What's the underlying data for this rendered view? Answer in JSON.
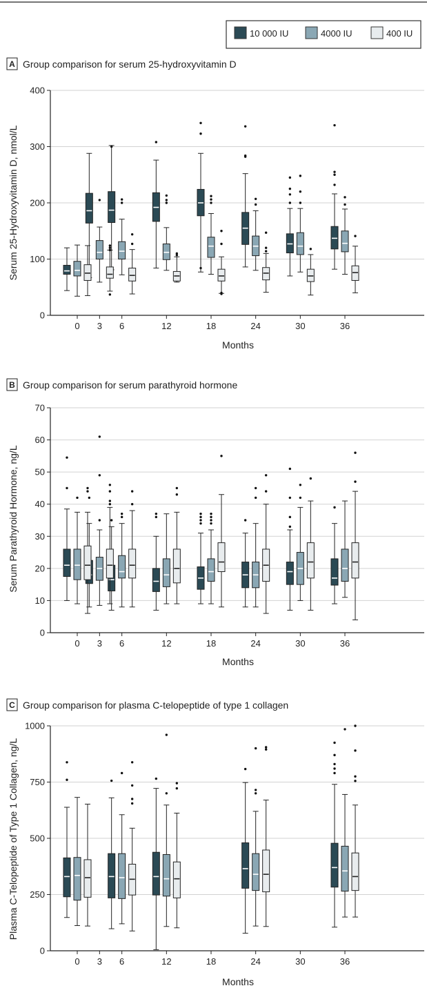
{
  "legend": {
    "entries": [
      {
        "label": "10 000 IU",
        "color": "#2b4a55"
      },
      {
        "label": "4000 IU",
        "color": "#8aa7b4"
      },
      {
        "label": "400 IU",
        "color": "#e8ecee"
      }
    ]
  },
  "chart_data": [
    {
      "type": "box",
      "panel_letter": "A",
      "title": "Group comparison for serum 25-hydroxyvitamin D",
      "xlabel": "Months",
      "ylabel": "Serum 25-Hydroxyvitamin D, nmol/L",
      "ylim": [
        0,
        400
      ],
      "yticks": [
        0,
        100,
        200,
        300,
        400
      ],
      "grid": true,
      "categories": [
        "0",
        "3",
        "6",
        "12",
        "18",
        "24",
        "30",
        "36"
      ],
      "series": [
        {
          "name": "10 000 IU",
          "boxes": [
            {
              "month": "0",
              "min": 44,
              "q1": 73,
              "median": 79,
              "q3": 89,
              "max": 120,
              "outliers": []
            },
            {
              "month": "3",
              "min": 67,
              "q1": 164,
              "median": 186,
              "q3": 217,
              "max": 288,
              "outliers": []
            },
            {
              "month": "6",
              "min": 81,
              "q1": 165,
              "median": 187,
              "q3": 220,
              "max": 302,
              "outliers": [
                300
              ]
            },
            {
              "month": "12",
              "min": 84,
              "q1": 167,
              "median": 192,
              "q3": 218,
              "max": 276,
              "outliers": [
                308
              ]
            },
            {
              "month": "18",
              "min": 77,
              "q1": 177,
              "median": 200,
              "q3": 224,
              "max": 288,
              "outliers": [
                84,
                323,
                342
              ]
            },
            {
              "month": "24",
              "min": 86,
              "q1": 126,
              "median": 155,
              "q3": 183,
              "max": 252,
              "outliers": [
                282,
                284,
                336
              ]
            },
            {
              "month": "30",
              "min": 70,
              "q1": 111,
              "median": 127,
              "q3": 145,
              "max": 190,
              "outliers": [
                200,
                215,
                225,
                245
              ]
            },
            {
              "month": "36",
              "min": 82,
              "q1": 118,
              "median": 137,
              "q3": 158,
              "max": 216,
              "outliers": [
                232,
                250,
                255,
                338
              ]
            }
          ]
        },
        {
          "name": "4000 IU",
          "boxes": [
            {
              "month": "0",
              "min": 34,
              "q1": 70,
              "median": 80,
              "q3": 96,
              "max": 125,
              "outliers": []
            },
            {
              "month": "3",
              "min": 59,
              "q1": 100,
              "median": 112,
              "q3": 133,
              "max": 157,
              "outliers": [
                205
              ]
            },
            {
              "month": "6",
              "min": 72,
              "q1": 100,
              "median": 114,
              "q3": 131,
              "max": 171,
              "outliers": [
                200,
                206
              ]
            },
            {
              "month": "12",
              "min": 80,
              "q1": 99,
              "median": 112,
              "q3": 127,
              "max": 156,
              "outliers": [
                200,
                205,
                213
              ]
            },
            {
              "month": "18",
              "min": 73,
              "q1": 103,
              "median": 123,
              "q3": 139,
              "max": 181,
              "outliers": [
                200,
                206,
                212
              ]
            },
            {
              "month": "24",
              "min": 80,
              "q1": 106,
              "median": 123,
              "q3": 141,
              "max": 186,
              "outliers": [
                197,
                207
              ]
            },
            {
              "month": "30",
              "min": 77,
              "q1": 108,
              "median": 123,
              "q3": 147,
              "max": 190,
              "outliers": [
                200,
                220,
                248
              ]
            },
            {
              "month": "36",
              "min": 73,
              "q1": 113,
              "median": 128,
              "q3": 150,
              "max": 189,
              "outliers": [
                197,
                210
              ]
            }
          ]
        },
        {
          "name": "400 IU",
          "boxes": [
            {
              "month": "0",
              "min": 35,
              "q1": 62,
              "median": 75,
              "q3": 90,
              "max": 124,
              "outliers": []
            },
            {
              "month": "3",
              "min": 43,
              "q1": 66,
              "median": 73,
              "q3": 86,
              "max": 116,
              "outliers": [
                37,
                116,
                120,
                124
              ]
            },
            {
              "month": "6",
              "min": 38,
              "q1": 61,
              "median": 71,
              "q3": 84,
              "max": 117,
              "outliers": [
                127,
                144
              ]
            },
            {
              "month": "12",
              "min": 59,
              "q1": 61,
              "median": 70,
              "q3": 78,
              "max": 104,
              "outliers": [
                107,
                110
              ]
            },
            {
              "month": "18",
              "min": 39,
              "q1": 61,
              "median": 70,
              "q3": 82,
              "max": 104,
              "outliers": [
                38,
                40,
                127,
                150
              ]
            },
            {
              "month": "24",
              "min": 41,
              "q1": 63,
              "median": 75,
              "q3": 85,
              "max": 110,
              "outliers": [
                114,
                120,
                147
              ]
            },
            {
              "month": "30",
              "min": 36,
              "q1": 60,
              "median": 70,
              "q3": 82,
              "max": 108,
              "outliers": [
                118
              ]
            },
            {
              "month": "36",
              "min": 40,
              "q1": 62,
              "median": 76,
              "q3": 88,
              "max": 123,
              "outliers": [
                141
              ]
            }
          ]
        }
      ]
    },
    {
      "type": "box",
      "panel_letter": "B",
      "title": "Group comparison for serum parathyroid hormone",
      "xlabel": "Months",
      "ylabel": "Serum Parathyroid Hormone, ng/L",
      "ylim": [
        0,
        70
      ],
      "yticks": [
        0,
        10,
        20,
        30,
        40,
        50,
        60,
        70
      ],
      "grid": true,
      "categories": [
        "0",
        "3",
        "6",
        "12",
        "18",
        "24",
        "30",
        "36"
      ],
      "series": [
        {
          "name": "10 000 IU",
          "boxes": [
            {
              "month": "0",
              "min": 10,
              "q1": 17.5,
              "median": 21,
              "q3": 26,
              "max": 38.5,
              "outliers": [
                45,
                54.5
              ]
            },
            {
              "month": "3",
              "min": 8,
              "q1": 15.3,
              "median": 18,
              "q3": 22.5,
              "max": 34,
              "outliers": [
                42
              ]
            },
            {
              "month": "6",
              "min": 7,
              "q1": 13,
              "median": 16.5,
              "q3": 21,
              "max": 33,
              "outliers": [
                35
              ]
            },
            {
              "month": "12",
              "min": 7,
              "q1": 12.8,
              "median": 16,
              "q3": 20,
              "max": 30,
              "outliers": [
                36,
                37
              ]
            },
            {
              "month": "18",
              "min": 9,
              "q1": 13.5,
              "median": 17,
              "q3": 20.5,
              "max": 31,
              "outliers": [
                34,
                35,
                36,
                37
              ]
            },
            {
              "month": "24",
              "min": 8,
              "q1": 14,
              "median": 18,
              "q3": 22,
              "max": 31,
              "outliers": [
                35
              ]
            },
            {
              "month": "30",
              "min": 7,
              "q1": 15,
              "median": 19,
              "q3": 22,
              "max": 32,
              "outliers": [
                33,
                36,
                42,
                51
              ]
            },
            {
              "month": "36",
              "min": 9,
              "q1": 14.8,
              "median": 17,
              "q3": 23,
              "max": 34,
              "outliers": [
                39
              ]
            }
          ]
        },
        {
          "name": "4000 IU",
          "boxes": [
            {
              "month": "0",
              "min": 9,
              "q1": 16.5,
              "median": 21,
              "q3": 26,
              "max": 37.5,
              "outliers": [
                42
              ]
            },
            {
              "month": "3",
              "min": 8.5,
              "q1": 16.3,
              "median": 20,
              "q3": 23.5,
              "max": 32,
              "outliers": [
                35,
                49,
                61
              ]
            },
            {
              "month": "6",
              "min": 8,
              "q1": 17,
              "median": 19,
              "q3": 24,
              "max": 34,
              "outliers": [
                36,
                37
              ]
            },
            {
              "month": "12",
              "min": 9,
              "q1": 14.3,
              "median": 18,
              "q3": 23,
              "max": 37,
              "outliers": []
            },
            {
              "month": "18",
              "min": 9,
              "q1": 16,
              "median": 19,
              "q3": 23,
              "max": 32,
              "outliers": [
                34,
                35,
                36,
                37
              ]
            },
            {
              "month": "24",
              "min": 8,
              "q1": 14,
              "median": 18,
              "q3": 22,
              "max": 34,
              "outliers": [
                42,
                45
              ]
            },
            {
              "month": "30",
              "min": 10,
              "q1": 15,
              "median": 20,
              "q3": 25,
              "max": 39,
              "outliers": [
                42,
                46
              ]
            },
            {
              "month": "36",
              "min": 11,
              "q1": 16,
              "median": 20,
              "q3": 26,
              "max": 41,
              "outliers": []
            }
          ]
        },
        {
          "name": "400 IU",
          "boxes": [
            {
              "month": "0",
              "min": 6,
              "q1": 16.5,
              "median": 21,
              "q3": 27,
              "max": 37.5,
              "outliers": [
                44,
                45
              ]
            },
            {
              "month": "3",
              "min": 9,
              "q1": 17,
              "median": 21,
              "q3": 26,
              "max": 39,
              "outliers": [
                40,
                41,
                44,
                46
              ]
            },
            {
              "month": "6",
              "min": 8,
              "q1": 17,
              "median": 21,
              "q3": 26,
              "max": 38,
              "outliers": [
                40,
                44
              ]
            },
            {
              "month": "12",
              "min": 9,
              "q1": 15.5,
              "median": 20,
              "q3": 26,
              "max": 37.5,
              "outliers": [
                43,
                45
              ]
            },
            {
              "month": "18",
              "min": 8,
              "q1": 19,
              "median": 22,
              "q3": 28,
              "max": 43,
              "outliers": [
                55
              ]
            },
            {
              "month": "24",
              "min": 6,
              "q1": 16,
              "median": 21,
              "q3": 26,
              "max": 40,
              "outliers": [
                44,
                49
              ]
            },
            {
              "month": "30",
              "min": 7,
              "q1": 17,
              "median": 22,
              "q3": 28,
              "max": 41,
              "outliers": [
                48
              ]
            },
            {
              "month": "36",
              "min": 4,
              "q1": 17,
              "median": 22,
              "q3": 28,
              "max": 44,
              "outliers": [
                47,
                56
              ]
            }
          ]
        }
      ]
    },
    {
      "type": "box",
      "panel_letter": "C",
      "title": "Group comparison for plasma C-telopeptide of type 1 collagen",
      "xlabel": "Months",
      "ylabel": "Plasma C-Telopeptide of Type 1 Collagen, ng/L",
      "ylim": [
        0,
        1000
      ],
      "yticks": [
        0,
        250,
        500,
        750,
        1000
      ],
      "grid": true,
      "categories": [
        "0",
        "3",
        "6",
        "12",
        "18",
        "24",
        "30",
        "36"
      ],
      "series": [
        {
          "name": "10 000 IU",
          "boxes": [
            {
              "month": "0",
              "min": 148,
              "q1": 240,
              "median": 330,
              "q3": 413,
              "max": 638,
              "outliers": [
                760,
                838
              ]
            },
            {
              "month": "6",
              "min": 98,
              "q1": 235,
              "median": 330,
              "q3": 432,
              "max": 680,
              "outliers": [
                756
              ]
            },
            {
              "month": "12",
              "min": 5,
              "q1": 248,
              "median": 330,
              "q3": 438,
              "max": 722,
              "outliers": [
                765
              ]
            },
            {
              "month": "24",
              "min": 78,
              "q1": 278,
              "median": 365,
              "q3": 480,
              "max": 748,
              "outliers": [
                808
              ]
            },
            {
              "month": "36",
              "min": 105,
              "q1": 283,
              "median": 370,
              "q3": 478,
              "max": 740,
              "outliers": [
                790,
                810,
                830,
                870,
                925
              ]
            }
          ]
        },
        {
          "name": "4000 IU",
          "boxes": [
            {
              "month": "0",
              "min": 112,
              "q1": 225,
              "median": 335,
              "q3": 415,
              "max": 682,
              "outliers": []
            },
            {
              "month": "6",
              "min": 120,
              "q1": 232,
              "median": 325,
              "q3": 432,
              "max": 605,
              "outliers": [
                790
              ]
            },
            {
              "month": "12",
              "min": 108,
              "q1": 243,
              "median": 320,
              "q3": 428,
              "max": 648,
              "outliers": [
                700,
                960
              ]
            },
            {
              "month": "24",
              "min": 110,
              "q1": 268,
              "median": 340,
              "q3": 432,
              "max": 620,
              "outliers": [
                700,
                715,
                900
              ]
            },
            {
              "month": "36",
              "min": 150,
              "q1": 265,
              "median": 355,
              "q3": 465,
              "max": 695,
              "outliers": [
                985
              ]
            }
          ]
        },
        {
          "name": "400 IU",
          "boxes": [
            {
              "month": "0",
              "min": 110,
              "q1": 238,
              "median": 325,
              "q3": 405,
              "max": 652,
              "outliers": []
            },
            {
              "month": "6",
              "min": 88,
              "q1": 248,
              "median": 318,
              "q3": 385,
              "max": 545,
              "outliers": [
                655,
                675,
                735,
                838
              ]
            },
            {
              "month": "12",
              "min": 102,
              "q1": 235,
              "median": 320,
              "q3": 395,
              "max": 612,
              "outliers": [
                722,
                745
              ]
            },
            {
              "month": "24",
              "min": 108,
              "q1": 262,
              "median": 340,
              "q3": 448,
              "max": 670,
              "outliers": [
                895,
                905
              ]
            },
            {
              "month": "36",
              "min": 150,
              "q1": 268,
              "median": 330,
              "q3": 435,
              "max": 648,
              "outliers": [
                755,
                775,
                890,
                1000
              ]
            }
          ]
        }
      ]
    }
  ]
}
